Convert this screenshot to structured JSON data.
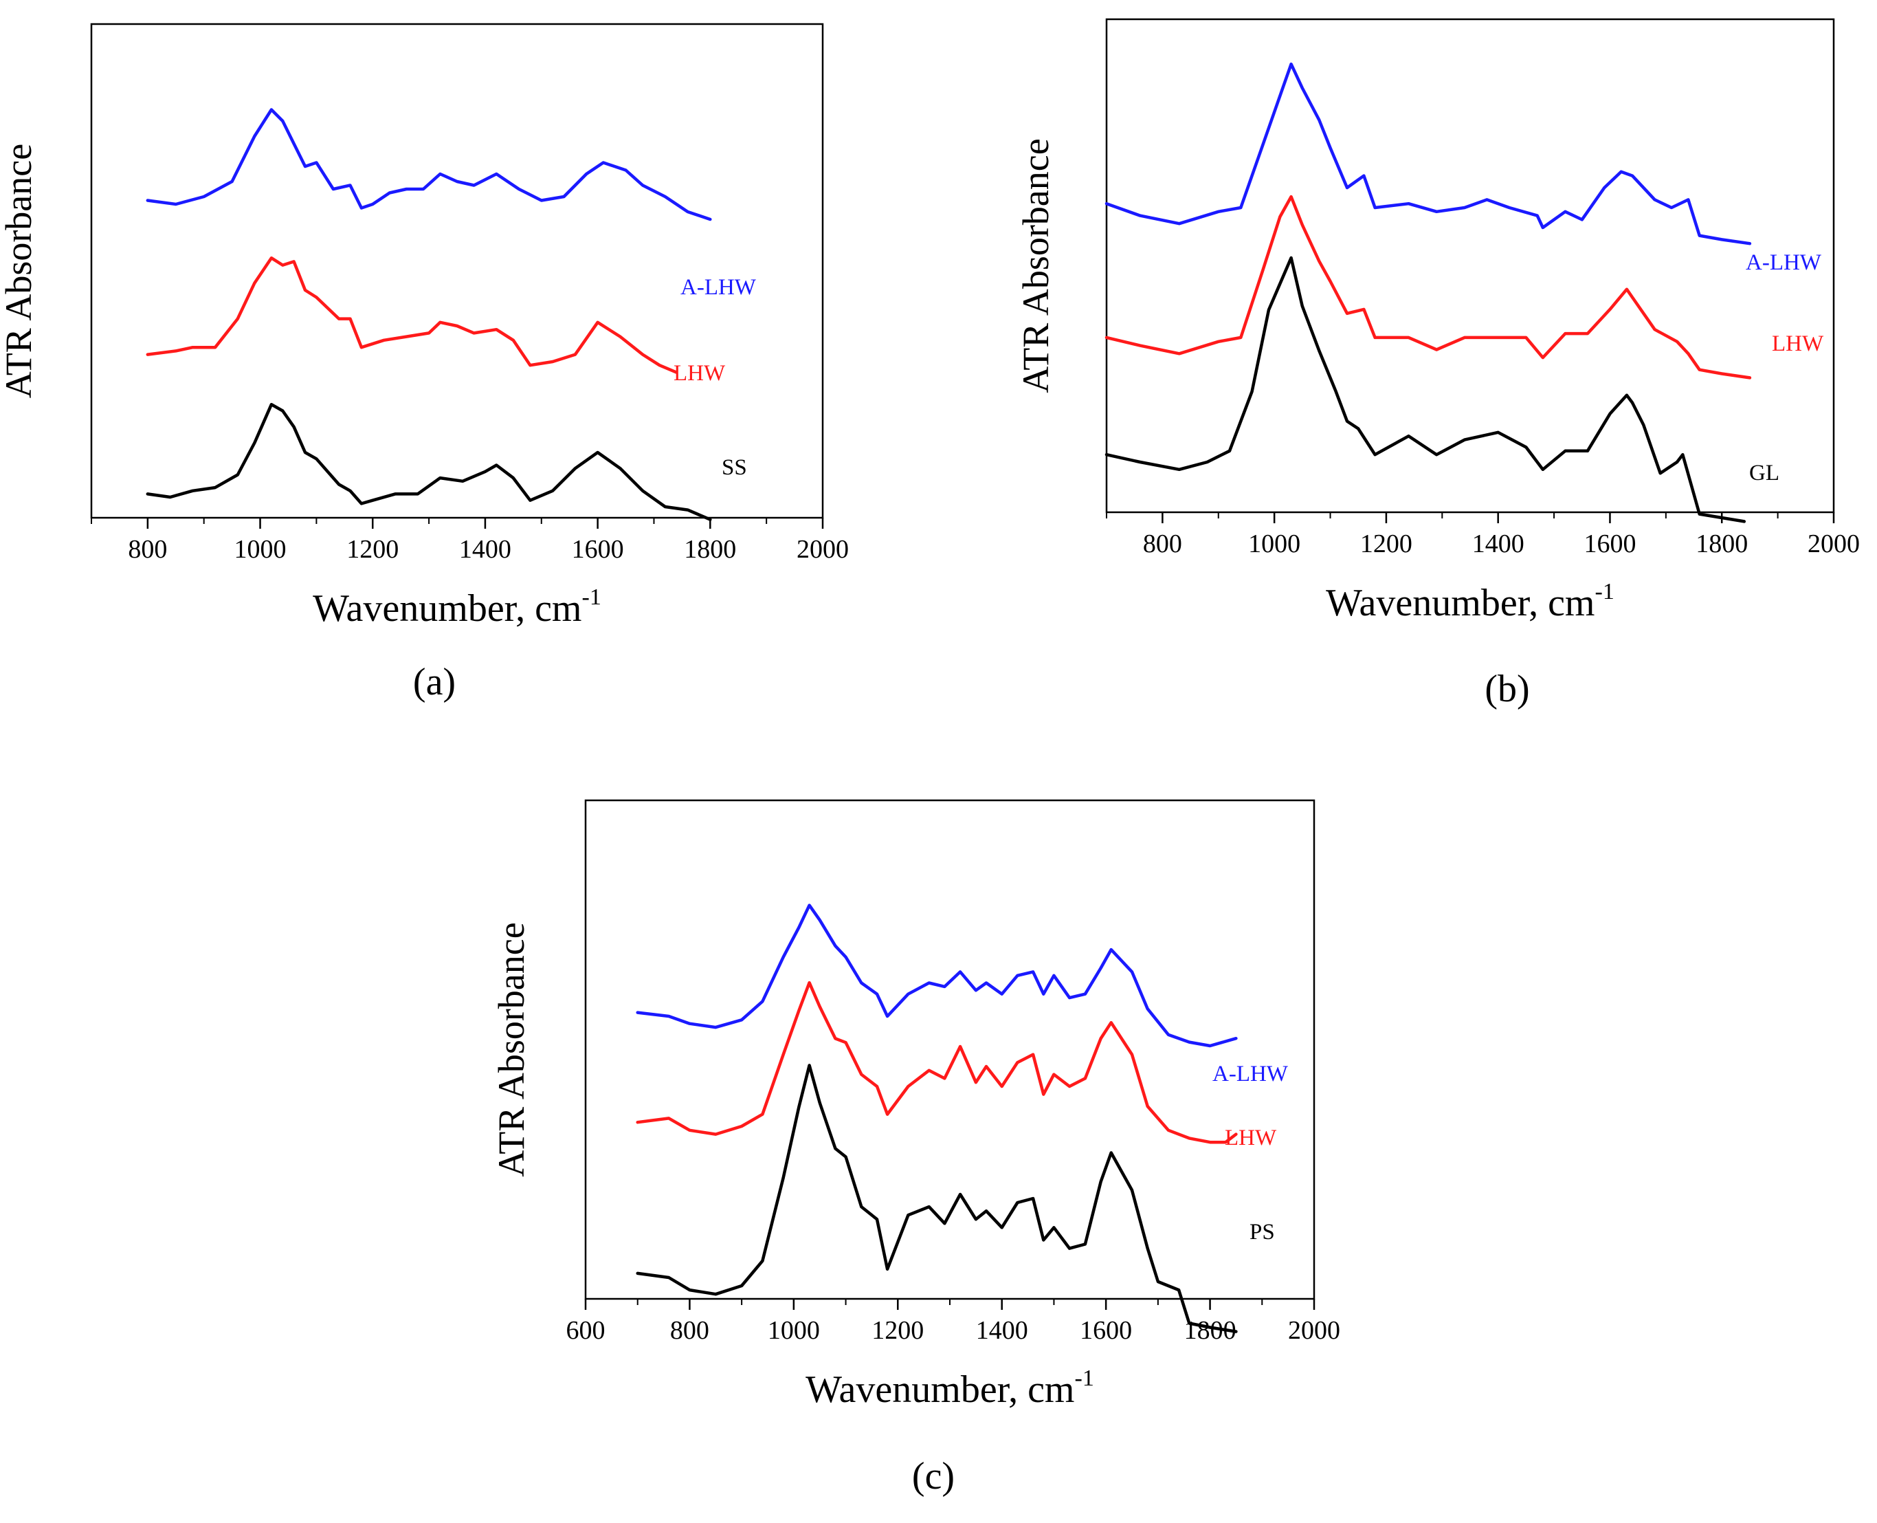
{
  "colors": {
    "blue": "#1a1aff",
    "red": "#ff1a1a",
    "black": "#000000",
    "axis": "#000000"
  },
  "chart_data": [
    {
      "id": "a",
      "type": "line",
      "panel_label": "(a)",
      "xlabel": "Wavenumber, cm",
      "xlabel_sup": "-1",
      "ylabel": "ATR Absorbance",
      "xlim": [
        700,
        2000
      ],
      "ylim": [
        0,
        1
      ],
      "xticks": [
        800,
        1000,
        1200,
        1400,
        1600,
        1800,
        2000
      ],
      "tick_labels": [
        "800",
        "1000",
        "1200",
        "1400",
        "1600",
        "1800",
        "2000"
      ],
      "series": [
        {
          "name": "A-LHW",
          "label": "A-LHW",
          "color": "blue",
          "x": [
            800,
            850,
            900,
            950,
            990,
            1020,
            1040,
            1060,
            1080,
            1100,
            1130,
            1160,
            1180,
            1200,
            1230,
            1260,
            1290,
            1320,
            1350,
            1380,
            1420,
            1460,
            1500,
            1540,
            1580,
            1610,
            1650,
            1680,
            1720,
            1760,
            1800
          ],
          "y": [
            0.67,
            0.66,
            0.68,
            0.72,
            0.84,
            0.91,
            0.88,
            0.82,
            0.76,
            0.77,
            0.7,
            0.71,
            0.65,
            0.66,
            0.69,
            0.7,
            0.7,
            0.74,
            0.72,
            0.71,
            0.74,
            0.7,
            0.67,
            0.68,
            0.74,
            0.77,
            0.75,
            0.71,
            0.68,
            0.64,
            0.62
          ]
        },
        {
          "name": "LHW",
          "label": "LHW",
          "color": "red",
          "x": [
            800,
            850,
            880,
            920,
            960,
            990,
            1020,
            1040,
            1060,
            1080,
            1100,
            1140,
            1160,
            1180,
            1220,
            1260,
            1300,
            1320,
            1350,
            1380,
            1420,
            1450,
            1480,
            1520,
            1560,
            1600,
            1640,
            1680,
            1710,
            1740
          ],
          "y": [
            0.47,
            0.48,
            0.49,
            0.49,
            0.57,
            0.67,
            0.74,
            0.72,
            0.73,
            0.65,
            0.63,
            0.57,
            0.57,
            0.49,
            0.51,
            0.52,
            0.53,
            0.56,
            0.55,
            0.53,
            0.54,
            0.51,
            0.44,
            0.45,
            0.47,
            0.56,
            0.52,
            0.47,
            0.44,
            0.42
          ]
        },
        {
          "name": "SS",
          "label": "SS",
          "color": "black",
          "x": [
            800,
            840,
            880,
            920,
            960,
            990,
            1020,
            1040,
            1060,
            1080,
            1100,
            1140,
            1160,
            1180,
            1200,
            1240,
            1280,
            1320,
            1360,
            1400,
            1420,
            1450,
            1480,
            1520,
            1560,
            1600,
            1640,
            1680,
            1720,
            1760,
            1800
          ],
          "y": [
            0.24,
            0.23,
            0.25,
            0.26,
            0.3,
            0.4,
            0.52,
            0.5,
            0.45,
            0.37,
            0.35,
            0.27,
            0.25,
            0.21,
            0.22,
            0.24,
            0.24,
            0.29,
            0.28,
            0.31,
            0.33,
            0.29,
            0.22,
            0.25,
            0.32,
            0.37,
            0.32,
            0.25,
            0.2,
            0.19,
            0.16
          ]
        }
      ]
    },
    {
      "id": "b",
      "type": "line",
      "panel_label": "(b)",
      "xlabel": "Wavenumber, cm",
      "xlabel_sup": "-1",
      "ylabel": "ATR Absorbance",
      "xlim": [
        700,
        2000
      ],
      "ylim": [
        0,
        1
      ],
      "xticks": [
        800,
        1000,
        1200,
        1400,
        1600,
        1800,
        2000
      ],
      "tick_labels": [
        "800",
        "1000",
        "1200",
        "1400",
        "1600",
        "1800",
        "2000"
      ],
      "series": [
        {
          "name": "A-LHW",
          "label": "A-LHW",
          "color": "blue",
          "x": [
            700,
            760,
            830,
            900,
            940,
            980,
            1010,
            1030,
            1050,
            1080,
            1100,
            1130,
            1160,
            1180,
            1240,
            1290,
            1340,
            1380,
            1420,
            1470,
            1480,
            1520,
            1550,
            1590,
            1620,
            1640,
            1680,
            1710,
            1740,
            1760,
            1800,
            1850
          ],
          "y": [
            0.61,
            0.58,
            0.56,
            0.59,
            0.6,
            0.76,
            0.88,
            0.96,
            0.9,
            0.82,
            0.75,
            0.65,
            0.68,
            0.6,
            0.61,
            0.59,
            0.6,
            0.62,
            0.6,
            0.58,
            0.55,
            0.59,
            0.57,
            0.65,
            0.69,
            0.68,
            0.62,
            0.6,
            0.62,
            0.53,
            0.52,
            0.51
          ]
        },
        {
          "name": "LHW",
          "label": "LHW",
          "color": "red",
          "x": [
            700,
            760,
            830,
            900,
            940,
            980,
            1010,
            1030,
            1050,
            1080,
            1100,
            1130,
            1160,
            1180,
            1240,
            1290,
            1340,
            1400,
            1450,
            1480,
            1520,
            1560,
            1600,
            1630,
            1640,
            1680,
            1720,
            1740,
            1760,
            1800,
            1850
          ],
          "y": [
            0.46,
            0.44,
            0.42,
            0.45,
            0.46,
            0.63,
            0.76,
            0.81,
            0.74,
            0.65,
            0.6,
            0.52,
            0.53,
            0.46,
            0.46,
            0.43,
            0.46,
            0.46,
            0.46,
            0.41,
            0.47,
            0.47,
            0.53,
            0.58,
            0.56,
            0.48,
            0.45,
            0.42,
            0.38,
            0.37,
            0.36
          ]
        },
        {
          "name": "GL",
          "label": "GL",
          "color": "black",
          "x": [
            700,
            760,
            830,
            880,
            920,
            960,
            990,
            1010,
            1030,
            1050,
            1080,
            1110,
            1130,
            1150,
            1180,
            1240,
            1290,
            1340,
            1400,
            1450,
            1480,
            1520,
            1560,
            1600,
            1630,
            1640,
            1660,
            1690,
            1720,
            1730,
            1760,
            1800,
            1840
          ],
          "y": [
            0.22,
            0.2,
            0.18,
            0.2,
            0.23,
            0.39,
            0.61,
            0.68,
            0.75,
            0.62,
            0.5,
            0.39,
            0.31,
            0.29,
            0.22,
            0.27,
            0.22,
            0.26,
            0.28,
            0.24,
            0.18,
            0.23,
            0.23,
            0.33,
            0.38,
            0.36,
            0.3,
            0.17,
            0.2,
            0.22,
            0.06,
            0.05,
            0.04
          ]
        }
      ]
    },
    {
      "id": "c",
      "type": "line",
      "panel_label": "(c)",
      "xlabel": "Wavenumber, cm",
      "xlabel_sup": "-1",
      "ylabel": "ATR Absorbance",
      "xlim": [
        600,
        2000
      ],
      "ylim": [
        0,
        1
      ],
      "xticks": [
        600,
        800,
        1000,
        1200,
        1400,
        1600,
        1800,
        2000
      ],
      "tick_labels": [
        "600",
        "800",
        "1000",
        "1200",
        "1400",
        "1600",
        "1800",
        "2000"
      ],
      "series": [
        {
          "name": "A-LHW",
          "label": "A-LHW",
          "color": "blue",
          "x": [
            700,
            760,
            800,
            850,
            900,
            940,
            980,
            1010,
            1030,
            1050,
            1080,
            1100,
            1130,
            1160,
            1180,
            1220,
            1260,
            1290,
            1320,
            1350,
            1370,
            1400,
            1430,
            1460,
            1480,
            1500,
            1530,
            1560,
            1590,
            1610,
            1650,
            1680,
            1720,
            1760,
            1800,
            1850
          ],
          "y": [
            0.59,
            0.58,
            0.56,
            0.55,
            0.57,
            0.62,
            0.74,
            0.82,
            0.88,
            0.84,
            0.77,
            0.74,
            0.67,
            0.64,
            0.58,
            0.64,
            0.67,
            0.66,
            0.7,
            0.65,
            0.67,
            0.64,
            0.69,
            0.7,
            0.64,
            0.69,
            0.63,
            0.64,
            0.71,
            0.76,
            0.7,
            0.6,
            0.53,
            0.51,
            0.5,
            0.52
          ]
        },
        {
          "name": "LHW",
          "label": "LHW",
          "color": "red",
          "x": [
            700,
            760,
            800,
            850,
            900,
            940,
            980,
            1010,
            1030,
            1050,
            1080,
            1100,
            1130,
            1160,
            1180,
            1220,
            1260,
            1290,
            1320,
            1350,
            1370,
            1400,
            1430,
            1460,
            1480,
            1500,
            1530,
            1560,
            1590,
            1610,
            1650,
            1680,
            1720,
            1760,
            1800,
            1830,
            1850
          ],
          "y": [
            0.41,
            0.42,
            0.39,
            0.38,
            0.4,
            0.43,
            0.58,
            0.69,
            0.76,
            0.7,
            0.62,
            0.61,
            0.53,
            0.5,
            0.43,
            0.5,
            0.54,
            0.52,
            0.6,
            0.51,
            0.55,
            0.5,
            0.56,
            0.58,
            0.48,
            0.53,
            0.5,
            0.52,
            0.62,
            0.66,
            0.58,
            0.45,
            0.39,
            0.37,
            0.36,
            0.36,
            0.38
          ]
        },
        {
          "name": "PS",
          "label": "PS",
          "color": "black",
          "x": [
            700,
            760,
            800,
            850,
            900,
            940,
            980,
            1010,
            1030,
            1050,
            1080,
            1100,
            1130,
            1160,
            1180,
            1220,
            1260,
            1290,
            1320,
            1350,
            1370,
            1400,
            1430,
            1460,
            1480,
            1500,
            1530,
            1560,
            1590,
            1610,
            1650,
            1680,
            1700,
            1740,
            1760,
            1800,
            1850
          ],
          "y": [
            0.22,
            0.21,
            0.18,
            0.17,
            0.19,
            0.25,
            0.45,
            0.62,
            0.72,
            0.63,
            0.52,
            0.5,
            0.38,
            0.35,
            0.23,
            0.36,
            0.38,
            0.34,
            0.41,
            0.35,
            0.37,
            0.33,
            0.39,
            0.4,
            0.3,
            0.33,
            0.28,
            0.29,
            0.44,
            0.51,
            0.42,
            0.28,
            0.2,
            0.18,
            0.1,
            0.09,
            0.08
          ]
        }
      ]
    }
  ]
}
